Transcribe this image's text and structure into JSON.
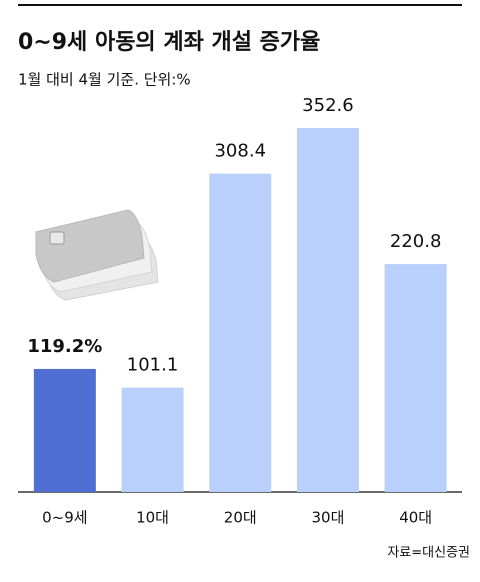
{
  "chart_data": {
    "type": "bar",
    "title": "0~9세 아동의 계좌 개설 증가율",
    "subtitle": "1월 대비 4월 기준. 단위:%",
    "source": "자료=대신증권",
    "categories": [
      "0~9세",
      "10대",
      "20대",
      "30대",
      "40대"
    ],
    "values": [
      119.2,
      101.1,
      308.4,
      352.6,
      220.8
    ],
    "value_labels": [
      "119.2%",
      "101.1",
      "308.4",
      "352.6",
      "220.8"
    ],
    "colors": [
      "#4f6fd4",
      "#b9cffc",
      "#b9cffc",
      "#b9cffc",
      "#b9cffc"
    ]
  }
}
